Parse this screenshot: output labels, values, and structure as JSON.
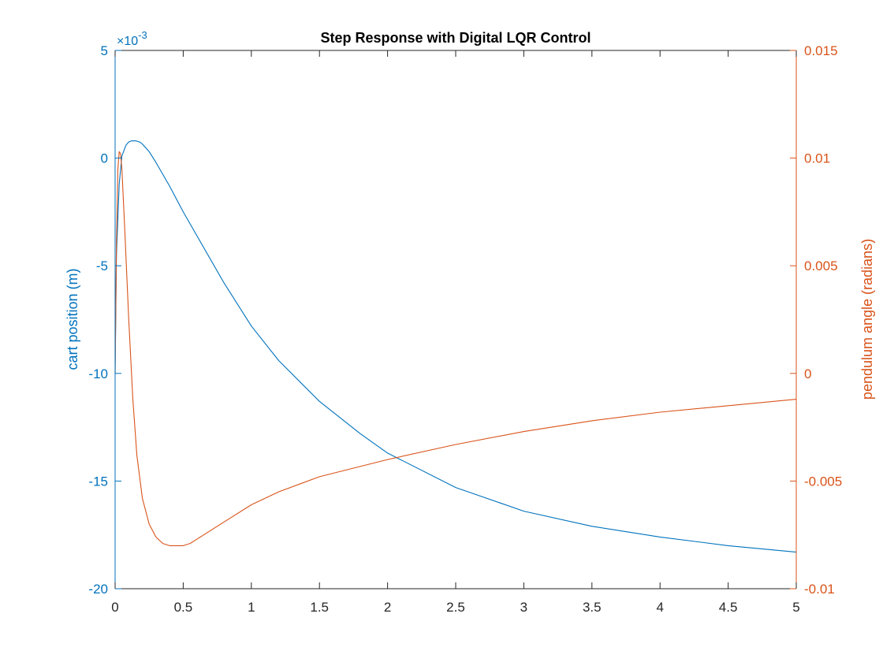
{
  "chart_data": {
    "type": "line",
    "title": "Step Response with Digital LQR Control",
    "xlabel": "",
    "xlim": [
      0,
      5
    ],
    "x_ticks": [
      "0",
      "0.5",
      "1",
      "1.5",
      "2",
      "2.5",
      "3",
      "3.5",
      "4",
      "4.5",
      "5"
    ],
    "x_tick_values": [
      0,
      0.5,
      1,
      1.5,
      2,
      2.5,
      3,
      3.5,
      4,
      4.5,
      5
    ],
    "grid": false,
    "legend": "none",
    "left_axis": {
      "label": "cart position (m)",
      "color": "#0072BD",
      "ylim": [
        -0.02,
        0.005
      ],
      "exponent_text": "×10",
      "exponent_power": "-3",
      "ticks": [
        "-20",
        "-15",
        "-10",
        "-5",
        "0",
        "5"
      ],
      "tick_values": [
        -0.02,
        -0.015,
        -0.01,
        -0.005,
        0,
        0.005
      ]
    },
    "right_axis": {
      "label": "pendulum angle (radians)",
      "color": "#D95319",
      "ylim": [
        -0.01,
        0.015
      ],
      "ticks": [
        "-0.01",
        "-0.005",
        "0",
        "0.005",
        "0.01",
        "0.015"
      ],
      "tick_values": [
        -0.01,
        -0.005,
        0,
        0.005,
        0.01,
        0.015
      ]
    },
    "series": [
      {
        "axis": "left",
        "color": "#0072BD",
        "x": [
          0,
          0.01,
          0.03,
          0.05,
          0.08,
          0.1,
          0.12,
          0.15,
          0.18,
          0.2,
          0.25,
          0.3,
          0.4,
          0.5,
          0.6,
          0.8,
          1,
          1.2,
          1.5,
          1.8,
          2,
          2.5,
          3,
          3.5,
          4,
          4.5,
          5
        ],
        "y": [
          -0.01,
          -0.0045,
          -0.0012,
          0.0001,
          0.0006,
          0.00075,
          0.0008,
          0.0008,
          0.00075,
          0.00065,
          0.0003,
          -0.0002,
          -0.0013,
          -0.0025,
          -0.0036,
          -0.0058,
          -0.0078,
          -0.0094,
          -0.0113,
          -0.0128,
          -0.0137,
          -0.0153,
          -0.0164,
          -0.0171,
          -0.0176,
          -0.018,
          -0.0183
        ]
      },
      {
        "axis": "right",
        "color": "#D95319",
        "x": [
          0,
          0.01,
          0.02,
          0.03,
          0.04,
          0.05,
          0.07,
          0.1,
          0.13,
          0.16,
          0.2,
          0.25,
          0.3,
          0.35,
          0.4,
          0.45,
          0.5,
          0.55,
          0.6,
          0.7,
          0.8,
          1,
          1.2,
          1.5,
          2,
          2.5,
          3,
          3.5,
          4,
          4.5,
          5
        ],
        "y": [
          0,
          0.006,
          0.0095,
          0.0103,
          0.0102,
          0.0095,
          0.0068,
          0.0025,
          -0.0012,
          -0.0038,
          -0.0058,
          -0.007,
          -0.0076,
          -0.0079,
          -0.008,
          -0.008,
          -0.008,
          -0.0079,
          -0.0077,
          -0.0073,
          -0.0069,
          -0.0061,
          -0.0055,
          -0.0048,
          -0.004,
          -0.0033,
          -0.0027,
          -0.0022,
          -0.0018,
          -0.0015,
          -0.0012
        ]
      }
    ]
  }
}
